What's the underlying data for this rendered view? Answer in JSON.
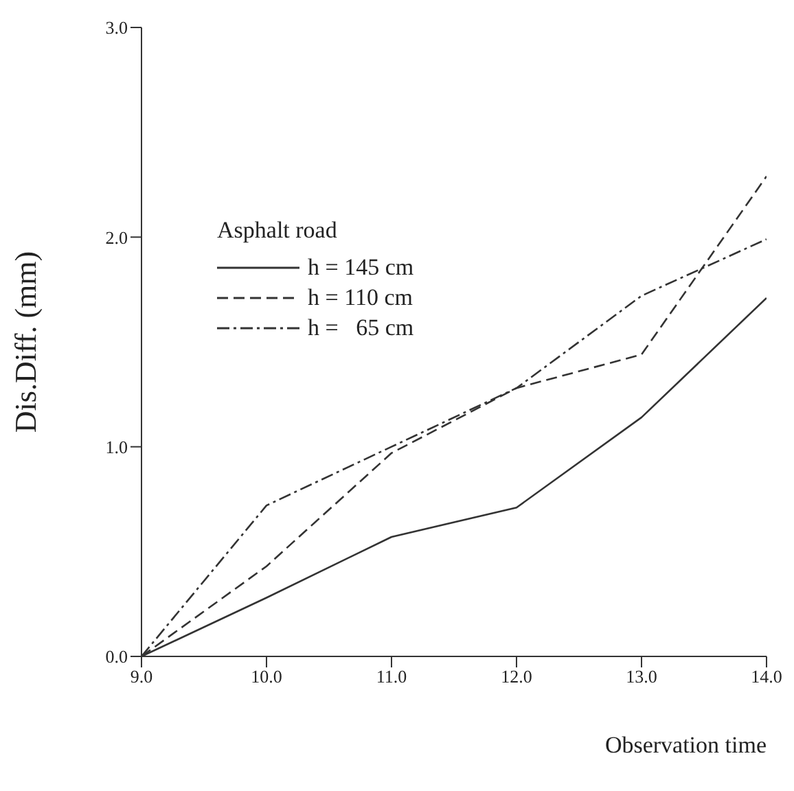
{
  "chart_data": {
    "type": "line",
    "xlabel": "Observation time",
    "ylabel": "Dis.Diff. (mm)",
    "legend_title": "Asphalt road",
    "categories": [
      "9.0",
      "10.0",
      "11.0",
      "12.0",
      "13.0",
      "14.0"
    ],
    "series": [
      {
        "name": "h = 145 cm",
        "color": "#333333",
        "line_style": "solid",
        "values": [
          0,
          0.28,
          0.57,
          0.71,
          1.14,
          1.71
        ]
      },
      {
        "name": "h = 110 cm",
        "color": "#333333",
        "line_style": "dashed",
        "values": [
          0,
          0.43,
          0.97,
          1.28,
          1.44,
          2.29
        ]
      },
      {
        "name": "h =   65 cm",
        "color": "#333333",
        "line_style": "dashdot",
        "values": [
          0,
          0.72,
          1.0,
          1.28,
          1.72,
          1.99
        ]
      }
    ],
    "ylim": [
      0,
      3
    ],
    "yticks": [
      {
        "value": 0,
        "label": "0.0"
      },
      {
        "value": 1,
        "label": "1.0"
      },
      {
        "value": 2,
        "label": "2.0"
      },
      {
        "value": 3,
        "label": "3.0"
      }
    ],
    "grid": false,
    "legend": "top left",
    "marker": "none"
  }
}
